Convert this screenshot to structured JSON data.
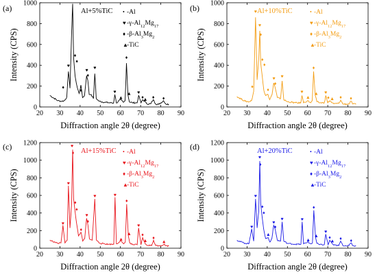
{
  "chart_data": [
    {
      "panel_label": "(a)",
      "type": "line",
      "title": "Al+5%TiC",
      "xlabel": "Diffraction angle 2θ (degree)",
      "ylabel": "Intensity (CPS)",
      "xlim": [
        20,
        90
      ],
      "ylim": [
        0,
        1000
      ],
      "xticks": [
        20,
        30,
        40,
        50,
        60,
        70,
        80,
        90
      ],
      "yticks": [
        0,
        200,
        400,
        600,
        800,
        1000
      ],
      "color": "#000000",
      "series": [
        {
          "x": [
            25,
            29,
            31,
            32.2,
            33.4,
            34.2,
            35.0,
            35.8,
            36.3,
            36.8,
            37.5,
            38.1,
            38.7,
            39.5,
            40.4,
            41.2,
            42.2,
            43.2,
            43.8,
            44.5,
            45.5,
            46.6,
            47.3,
            48.0,
            49.5,
            52,
            55,
            56.6,
            57.2,
            58,
            60,
            61.5,
            62.3,
            63.0,
            63.7,
            64.4,
            66,
            68.3,
            69.0,
            70.2,
            71,
            72.3,
            73,
            75,
            76.3,
            77.5,
            79,
            81.4,
            82.5,
            84
          ],
          "y": [
            110,
            60,
            55,
            60,
            95,
            340,
            180,
            720,
            990,
            470,
            300,
            230,
            180,
            130,
            210,
            90,
            110,
            300,
            260,
            120,
            120,
            80,
            320,
            80,
            55,
            45,
            40,
            38,
            120,
            38,
            70,
            45,
            60,
            420,
            120,
            50,
            40,
            40,
            110,
            40,
            70,
            50,
            30,
            30,
            70,
            28,
            25,
            60,
            28,
            25
          ]
        }
      ],
      "annotations": [
        {
          "symbol": "♦",
          "x": 31.6,
          "y": 195
        },
        {
          "symbol": "♥",
          "x": 34.2,
          "y": 400
        },
        {
          "symbol": "♥",
          "x": 36.3,
          "y": 1045
        },
        {
          "symbol": "♦",
          "x": 37.5,
          "y": 500
        },
        {
          "symbol": "♦",
          "x": 38.4,
          "y": 445
        },
        {
          "symbol": "♦",
          "x": 40.4,
          "y": 165
        },
        {
          "symbol": "♥",
          "x": 43.3,
          "y": 360
        },
        {
          "symbol": "♦",
          "x": 43.9,
          "y": 310
        },
        {
          "symbol": "♥",
          "x": 47.3,
          "y": 380
        },
        {
          "symbol": "♥",
          "x": 57.2,
          "y": 150
        },
        {
          "symbol": "▲",
          "x": 60.2,
          "y": 95
        },
        {
          "symbol": "♦",
          "x": 63.0,
          "y": 480
        },
        {
          "symbol": "▲",
          "x": 64.3,
          "y": 135
        },
        {
          "symbol": "♥",
          "x": 69.0,
          "y": 145
        },
        {
          "symbol": "♦",
          "x": 71.0,
          "y": 100
        },
        {
          "symbol": "▲",
          "x": 72.3,
          "y": 80
        },
        {
          "symbol": "♦",
          "x": 76.3,
          "y": 100
        },
        {
          "symbol": "♦",
          "x": 81.4,
          "y": 90
        }
      ],
      "legend": [
        {
          "symbol": "•",
          "label_parts": [
            {
              "t": "-Al"
            }
          ]
        },
        {
          "symbol": "♥",
          "label_parts": [
            {
              "t": "-γ-Al"
            },
            {
              "t": "12",
              "sub": true
            },
            {
              "t": "Mg"
            },
            {
              "t": "17",
              "sub": true
            }
          ]
        },
        {
          "symbol": "♦",
          "label_parts": [
            {
              "t": "-β-Al"
            },
            {
              "t": "3",
              "sub": true
            },
            {
              "t": "Mg"
            },
            {
              "t": "2",
              "sub": true
            }
          ]
        },
        {
          "symbol": "▲",
          "label_parts": [
            {
              "t": "-TiC"
            }
          ]
        }
      ]
    },
    {
      "panel_label": "(b)",
      "type": "line",
      "title": "Al+10%TiC",
      "xlabel": "Diffraction angle 2θ (degree)",
      "ylabel": "Intensity (CPS)",
      "xlim": [
        20,
        90
      ],
      "ylim": [
        0,
        1000
      ],
      "xticks": [
        20,
        30,
        40,
        50,
        60,
        70,
        80,
        90
      ],
      "yticks": [
        0,
        200,
        400,
        600,
        800,
        1000
      ],
      "color": "#f39c12",
      "series": [
        {
          "x": [
            25,
            29,
            31,
            32.2,
            33.3,
            34.2,
            35.0,
            35.8,
            36.3,
            36.8,
            37.5,
            38.3,
            39.2,
            40.4,
            41.2,
            42.4,
            43.2,
            44.0,
            45,
            46.6,
            47.4,
            48.2,
            50,
            54,
            56.6,
            57.2,
            58,
            60,
            61.6,
            62.3,
            63.0,
            63.8,
            64.6,
            66,
            68.3,
            69.0,
            70.0,
            71,
            72.2,
            73,
            75.5,
            76.4,
            77.5,
            80.5,
            81.5,
            82.5,
            84
          ],
          "y": [
            100,
            55,
            50,
            60,
            150,
            860,
            260,
            460,
            730,
            420,
            300,
            160,
            110,
            120,
            70,
            120,
            230,
            180,
            90,
            80,
            250,
            70,
            50,
            40,
            38,
            110,
            40,
            60,
            40,
            60,
            340,
            110,
            50,
            40,
            40,
            110,
            40,
            60,
            40,
            30,
            35,
            65,
            28,
            28,
            55,
            28,
            25
          ]
        }
      ],
      "annotations": [
        {
          "symbol": "♦",
          "x": 32.6,
          "y": 200
        },
        {
          "symbol": "♥",
          "x": 34.2,
          "y": 920
        },
        {
          "symbol": "♥",
          "x": 36.3,
          "y": 790
        },
        {
          "symbol": "♦",
          "x": 36.8,
          "y": 700
        },
        {
          "symbol": "♦",
          "x": 37.6,
          "y": 460
        },
        {
          "symbol": "♦",
          "x": 38.6,
          "y": 410
        },
        {
          "symbol": "♦",
          "x": 40.4,
          "y": 170
        },
        {
          "symbol": "♥",
          "x": 43.3,
          "y": 280
        },
        {
          "symbol": "♦",
          "x": 44.0,
          "y": 230
        },
        {
          "symbol": "♥",
          "x": 47.4,
          "y": 300
        },
        {
          "symbol": "♥",
          "x": 57.2,
          "y": 150
        },
        {
          "symbol": "▲",
          "x": 60.2,
          "y": 100
        },
        {
          "symbol": "♦",
          "x": 63.0,
          "y": 380
        },
        {
          "symbol": "▲",
          "x": 64.3,
          "y": 135
        },
        {
          "symbol": "♥",
          "x": 69.0,
          "y": 145
        },
        {
          "symbol": "♦",
          "x": 70.3,
          "y": 95
        },
        {
          "symbol": "▲",
          "x": 72.2,
          "y": 85
        },
        {
          "symbol": "♦",
          "x": 76.4,
          "y": 100
        },
        {
          "symbol": "♦",
          "x": 81.5,
          "y": 90
        }
      ],
      "legend": [
        {
          "symbol": "•",
          "label_parts": [
            {
              "t": "-Al"
            }
          ]
        },
        {
          "symbol": "♥",
          "label_parts": [
            {
              "t": "-γ-Al"
            },
            {
              "t": "12",
              "sub": true
            },
            {
              "t": "Mg"
            },
            {
              "t": "17",
              "sub": true
            }
          ]
        },
        {
          "symbol": "♦",
          "label_parts": [
            {
              "t": "-β-Al"
            },
            {
              "t": "3",
              "sub": true
            },
            {
              "t": "Mg"
            },
            {
              "t": "2",
              "sub": true
            }
          ]
        },
        {
          "symbol": "▲",
          "label_parts": [
            {
              "t": "-TiC"
            }
          ]
        }
      ]
    },
    {
      "panel_label": "(c)",
      "type": "line",
      "title": "Al+15%TiC",
      "xlabel": "Diffraction angle 2θ (degree)",
      "ylabel": "Intensity (CPS)",
      "xlim": [
        20,
        90
      ],
      "ylim": [
        0,
        1200
      ],
      "xticks": [
        20,
        30,
        40,
        50,
        60,
        70,
        80,
        90
      ],
      "yticks": [
        0,
        200,
        400,
        600,
        800,
        1000,
        1200
      ],
      "color": "#e8141b",
      "series": [
        {
          "x": [
            25,
            29,
            30.5,
            31.5,
            32.5,
            33.6,
            34.2,
            35.0,
            35.8,
            36.3,
            36.8,
            37.5,
            38.2,
            39.2,
            40.5,
            41.3,
            42.3,
            43.2,
            43.9,
            44.6,
            46,
            47.3,
            48.1,
            50,
            54,
            56.7,
            57.3,
            58,
            60,
            61.6,
            62.4,
            63.1,
            63.9,
            64.6,
            66,
            68.3,
            69.0,
            70.2,
            71,
            72.3,
            73,
            75.5,
            76.4,
            77.5,
            80.5,
            81.6,
            82.5,
            84
          ],
          "y": [
            90,
            55,
            60,
            260,
            60,
            90,
            710,
            230,
            500,
            1120,
            560,
            420,
            290,
            140,
            180,
            80,
            110,
            340,
            260,
            110,
            90,
            560,
            90,
            55,
            45,
            45,
            580,
            50,
            80,
            50,
            70,
            500,
            140,
            60,
            40,
            40,
            230,
            40,
            120,
            50,
            35,
            30,
            90,
            30,
            30,
            45,
            28,
            25
          ]
        }
      ],
      "annotations": [
        {
          "symbol": "♥",
          "x": 31.5,
          "y": 290
        },
        {
          "symbol": "♥",
          "x": 34.2,
          "y": 745
        },
        {
          "symbol": "♥",
          "x": 36.0,
          "y": 1170
        },
        {
          "symbol": "♦",
          "x": 36.5,
          "y": 1090
        },
        {
          "symbol": "♦",
          "x": 37.6,
          "y": 525
        },
        {
          "symbol": "♦",
          "x": 38.3,
          "y": 450
        },
        {
          "symbol": "♦",
          "x": 40.5,
          "y": 220
        },
        {
          "symbol": "♥",
          "x": 43.3,
          "y": 380
        },
        {
          "symbol": "♦",
          "x": 43.9,
          "y": 310
        },
        {
          "symbol": "♥",
          "x": 47.3,
          "y": 600
        },
        {
          "symbol": "♥",
          "x": 57.3,
          "y": 610
        },
        {
          "symbol": "▲",
          "x": 60.3,
          "y": 110
        },
        {
          "symbol": "♦",
          "x": 63.1,
          "y": 545
        },
        {
          "symbol": "▲",
          "x": 64.3,
          "y": 170
        },
        {
          "symbol": "♥",
          "x": 69.0,
          "y": 265
        },
        {
          "symbol": "♦",
          "x": 71.0,
          "y": 160
        },
        {
          "symbol": "▲",
          "x": 72.3,
          "y": 95
        },
        {
          "symbol": "♦",
          "x": 76.4,
          "y": 125
        },
        {
          "symbol": "▲",
          "x": 81.6,
          "y": 80
        }
      ],
      "legend": [
        {
          "symbol": "•",
          "label_parts": [
            {
              "t": "-Al"
            }
          ]
        },
        {
          "symbol": "♥",
          "label_parts": [
            {
              "t": "-γ-Al"
            },
            {
              "t": "12",
              "sub": true
            },
            {
              "t": "Mg"
            },
            {
              "t": "17",
              "sub": true
            }
          ]
        },
        {
          "symbol": "♦",
          "label_parts": [
            {
              "t": "-β-Al"
            },
            {
              "t": "3",
              "sub": true
            },
            {
              "t": "Mg"
            },
            {
              "t": "2",
              "sub": true
            }
          ]
        },
        {
          "symbol": "▲",
          "label_parts": [
            {
              "t": "-TiC"
            }
          ]
        }
      ]
    },
    {
      "panel_label": "(d)",
      "type": "line",
      "title": "Al+20%TiC",
      "xlabel": "Diffraction angle 2θ (degree)",
      "ylabel": "Intensity (CPS)",
      "xlim": [
        20,
        90
      ],
      "ylim": [
        0,
        1200
      ],
      "xticks": [
        20,
        30,
        40,
        50,
        60,
        70,
        80,
        90
      ],
      "yticks": [
        0,
        200,
        400,
        600,
        800,
        1000,
        1200
      ],
      "color": "#1a1ae6",
      "series": [
        {
          "x": [
            25,
            29,
            31,
            32.3,
            33.3,
            34.2,
            35.0,
            35.8,
            36.3,
            36.8,
            37.5,
            38.2,
            39.2,
            40.5,
            41.3,
            42.3,
            43.2,
            44.0,
            45,
            46.6,
            47.4,
            48.2,
            50,
            54,
            56.7,
            57.3,
            58,
            60,
            61.6,
            62.4,
            63.1,
            63.9,
            64.6,
            66,
            68.3,
            69.0,
            70.2,
            71,
            72.3,
            73,
            75.5,
            76.4,
            77.5,
            80.5,
            81.6,
            82.5,
            84
          ],
          "y": [
            90,
            55,
            55,
            220,
            80,
            560,
            230,
            420,
            990,
            500,
            350,
            220,
            110,
            120,
            70,
            110,
            260,
            210,
            90,
            80,
            300,
            80,
            55,
            45,
            45,
            300,
            50,
            70,
            50,
            60,
            430,
            130,
            55,
            40,
            40,
            160,
            40,
            90,
            50,
            35,
            30,
            80,
            30,
            30,
            60,
            28,
            25
          ]
        }
      ],
      "annotations": [
        {
          "symbol": "♥",
          "x": 32.3,
          "y": 250
        },
        {
          "symbol": "♥",
          "x": 34.2,
          "y": 600
        },
        {
          "symbol": "♥",
          "x": 36.3,
          "y": 1040
        },
        {
          "symbol": "♦",
          "x": 36.6,
          "y": 960
        },
        {
          "symbol": "♦",
          "x": 37.6,
          "y": 480
        },
        {
          "symbol": "♦",
          "x": 38.3,
          "y": 410
        },
        {
          "symbol": "▲",
          "x": 40.5,
          "y": 165
        },
        {
          "symbol": "♥",
          "x": 43.2,
          "y": 300
        },
        {
          "symbol": "♦",
          "x": 44.0,
          "y": 250
        },
        {
          "symbol": "♥",
          "x": 47.4,
          "y": 340
        },
        {
          "symbol": "♥",
          "x": 57.3,
          "y": 335
        },
        {
          "symbol": "▲",
          "x": 60.3,
          "y": 100
        },
        {
          "symbol": "♦",
          "x": 63.1,
          "y": 470
        },
        {
          "symbol": "▲",
          "x": 64.3,
          "y": 150
        },
        {
          "symbol": "♥",
          "x": 69.0,
          "y": 195
        },
        {
          "symbol": "♦",
          "x": 71.0,
          "y": 130
        },
        {
          "symbol": "▲",
          "x": 72.3,
          "y": 90
        },
        {
          "symbol": "♦",
          "x": 76.4,
          "y": 115
        },
        {
          "symbol": "♦",
          "x": 81.6,
          "y": 95
        }
      ],
      "legend": [
        {
          "symbol": "•",
          "label_parts": [
            {
              "t": "-Al"
            }
          ]
        },
        {
          "symbol": "♥",
          "label_parts": [
            {
              "t": "-γ-Al"
            },
            {
              "t": "12",
              "sub": true
            },
            {
              "t": "Mg"
            },
            {
              "t": "17",
              "sub": true
            }
          ]
        },
        {
          "symbol": "♦",
          "label_parts": [
            {
              "t": "-β-Al"
            },
            {
              "t": "3",
              "sub": true
            },
            {
              "t": "Mg"
            },
            {
              "t": "2",
              "sub": true
            }
          ]
        },
        {
          "symbol": "▲",
          "label_parts": [
            {
              "t": "-TiC"
            }
          ]
        }
      ]
    }
  ]
}
